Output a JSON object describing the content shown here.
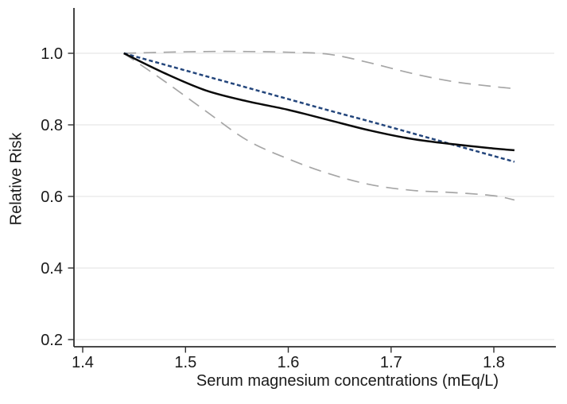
{
  "chart_data": {
    "type": "line",
    "title": "",
    "xlabel": "Serum magnesium concentrations (mEq/L)",
    "ylabel": "Relative Risk",
    "grid": "horizontal-only",
    "legend": "none",
    "x_axis": {
      "range_shown": [
        1.39,
        1.86
      ],
      "ticks": [
        {
          "value": 1.4,
          "label": "1.4"
        },
        {
          "value": 1.5,
          "label": "1.5"
        },
        {
          "value": 1.6,
          "label": "1.6"
        },
        {
          "value": 1.7,
          "label": "1.7"
        },
        {
          "value": 1.8,
          "label": "1.8"
        }
      ]
    },
    "y_axis": {
      "range_shown": [
        0.18,
        1.13
      ],
      "ticks": [
        {
          "value": 1.0,
          "label": "1.0"
        },
        {
          "value": 0.8,
          "label": "0.8"
        },
        {
          "value": 0.6,
          "label": "0.6"
        },
        {
          "value": 0.4,
          "label": "0.4"
        },
        {
          "value": 0.2,
          "label": "0.2"
        }
      ]
    },
    "x": [
      1.44,
      1.48,
      1.52,
      1.56,
      1.6,
      1.64,
      1.68,
      1.72,
      1.76,
      1.8,
      1.82
    ],
    "series": [
      {
        "name": "upper-95ci",
        "style": "long-dash",
        "color": "#a6a6a6",
        "width": 1.7,
        "values": [
          1.0,
          1.003,
          1.005,
          1.005,
          1.003,
          0.997,
          0.973,
          0.944,
          0.921,
          0.907,
          0.901
        ]
      },
      {
        "name": "lower-95ci",
        "style": "long-dash",
        "color": "#a6a6a6",
        "width": 1.7,
        "values": [
          1.0,
          0.921,
          0.838,
          0.757,
          0.705,
          0.663,
          0.633,
          0.617,
          0.611,
          0.602,
          0.59
        ]
      },
      {
        "name": "linear-trend",
        "style": "short-dash",
        "color": "#24467c",
        "width": 2.5,
        "values": [
          1.0,
          0.968,
          0.936,
          0.904,
          0.872,
          0.84,
          0.809,
          0.777,
          0.745,
          0.713,
          0.697
        ]
      },
      {
        "name": "spline-estimate",
        "style": "solid",
        "color": "#0a0a0a",
        "width": 2.5,
        "values": [
          1.0,
          0.944,
          0.896,
          0.866,
          0.842,
          0.813,
          0.784,
          0.761,
          0.746,
          0.734,
          0.729
        ]
      }
    ],
    "colors": {
      "background": "#ffffff",
      "axis": "#2f2f2f",
      "grid": "#e8e8e8",
      "text": "#1a1a1a"
    }
  }
}
